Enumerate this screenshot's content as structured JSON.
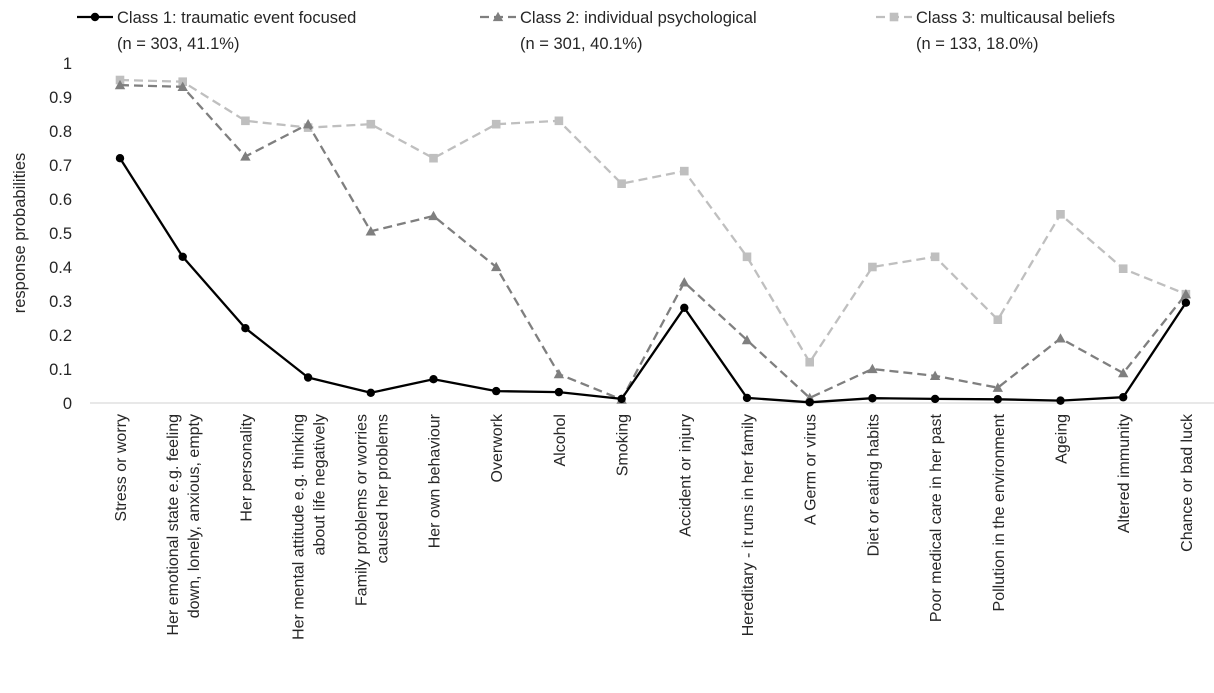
{
  "chart_data": {
    "type": "line",
    "title": "",
    "xlabel": "",
    "ylabel": "response probabilities",
    "ylim": [
      0,
      1
    ],
    "yticks": [
      "0",
      "0.1",
      "0.2",
      "0.3",
      "0.4",
      "0.5",
      "0.6",
      "0.7",
      "0.8",
      "0.9",
      "1"
    ],
    "grid": false,
    "legend_position": "top",
    "categories": [
      [
        "Stress or worry"
      ],
      [
        "Her emotional state e.g. feeling",
        "down, lonely, anxious, empty"
      ],
      [
        "Her personality"
      ],
      [
        "Her mental attitude e.g. thinking",
        "about life negatively"
      ],
      [
        "Family problems or worries",
        "caused her problems"
      ],
      [
        "Her own behaviour"
      ],
      [
        "Overwork"
      ],
      [
        "Alcohol"
      ],
      [
        "Smoking"
      ],
      [
        "Accident or injury"
      ],
      [
        "Hereditary - it runs in her family"
      ],
      [
        "A Germ or virus"
      ],
      [
        "Diet or eating habits"
      ],
      [
        "Poor medical care in her past"
      ],
      [
        "Pollution in the environment"
      ],
      [
        "Ageing"
      ],
      [
        "Altered immunity"
      ],
      [
        "Chance or bad luck"
      ]
    ],
    "series": [
      {
        "name": "Class 1: traumatic event focused",
        "subtitle": "(n = 303, 41.1%)",
        "color": "#000000",
        "dash": "solid",
        "marker": "circle",
        "values": [
          0.72,
          0.43,
          0.22,
          0.075,
          0.03,
          0.07,
          0.035,
          0.032,
          0.012,
          0.28,
          0.015,
          0.002,
          0.014,
          0.012,
          0.011,
          0.007,
          0.017,
          0.295
        ]
      },
      {
        "name": "Class 2: individual  psychological",
        "subtitle": "(n = 301, 40.1%)",
        "color": "#7f7f7f",
        "dash": "dashed",
        "marker": "triangle",
        "values": [
          0.935,
          0.93,
          0.725,
          0.82,
          0.505,
          0.55,
          0.4,
          0.085,
          0.01,
          0.355,
          0.185,
          0.015,
          0.1,
          0.08,
          0.045,
          0.19,
          0.088,
          0.32
        ]
      },
      {
        "name": "Class 3: multicausal beliefs",
        "subtitle": "(n = 133, 18.0%)",
        "color": "#bfbfbf",
        "dash": "dashed",
        "marker": "square",
        "values": [
          0.95,
          0.945,
          0.83,
          0.81,
          0.82,
          0.72,
          0.82,
          0.83,
          0.645,
          0.682,
          0.43,
          0.12,
          0.4,
          0.43,
          0.245,
          0.555,
          0.395,
          0.32
        ]
      }
    ]
  }
}
